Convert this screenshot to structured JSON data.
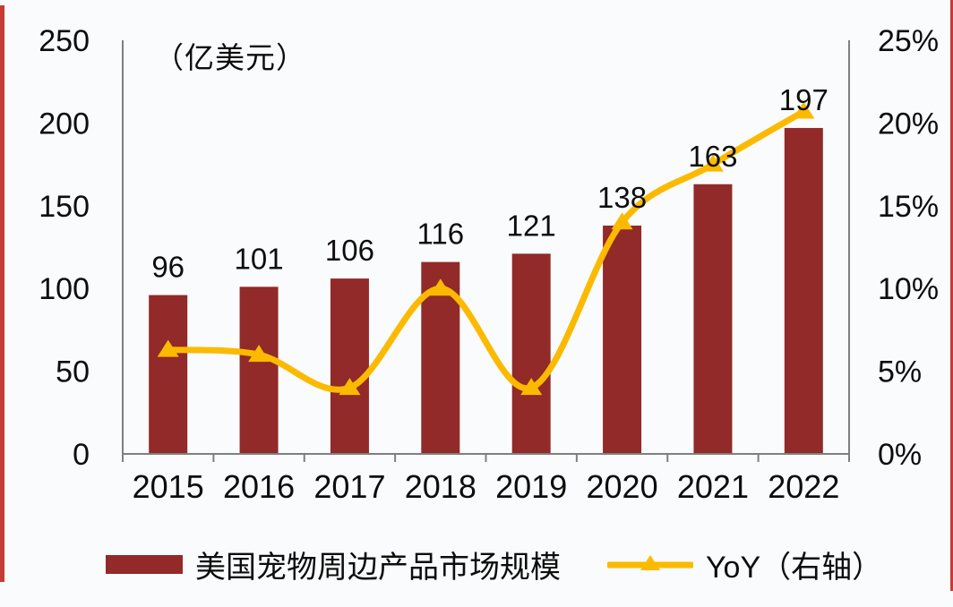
{
  "unit_label": "（亿美元）",
  "legend": {
    "bar_label": "美国宠物周边产品市场规模",
    "line_label": "YoY（右轴）"
  },
  "colors": {
    "bar": "#912a28",
    "line": "#fbba00",
    "axis": "#7f7f7f",
    "text": "#0d0d0d",
    "border_strip": "#c43c35",
    "background": "#fafbfc"
  },
  "chart_data": {
    "type": "bar",
    "title": "",
    "categories": [
      "2015",
      "2016",
      "2017",
      "2018",
      "2019",
      "2020",
      "2021",
      "2022"
    ],
    "series": [
      {
        "name": "美国宠物周边产品市场规模",
        "type": "bar",
        "axis": "left",
        "values": [
          96,
          101,
          106,
          116,
          121,
          138,
          163,
          197
        ],
        "data_labels": [
          "96",
          "101",
          "106",
          "116",
          "121",
          "138",
          "163",
          "197"
        ]
      },
      {
        "name": "YoY（右轴）",
        "type": "line",
        "axis": "right",
        "marker": "triangle-up",
        "smoothed": true,
        "values_percent": [
          6.3,
          6.0,
          4.0,
          10.0,
          4.0,
          14.0,
          17.5,
          20.7
        ]
      }
    ],
    "left_axis": {
      "unit_label": "（亿美元）",
      "min": 0,
      "max": 250,
      "step": 50,
      "ticks": [
        "0",
        "50",
        "100",
        "150",
        "200",
        "250"
      ]
    },
    "right_axis": {
      "min_percent": 0,
      "max_percent": 25,
      "step_percent": 5,
      "ticks": [
        "0%",
        "5%",
        "10%",
        "15%",
        "20%",
        "25%"
      ]
    },
    "grid": false,
    "legend_position": "bottom"
  }
}
